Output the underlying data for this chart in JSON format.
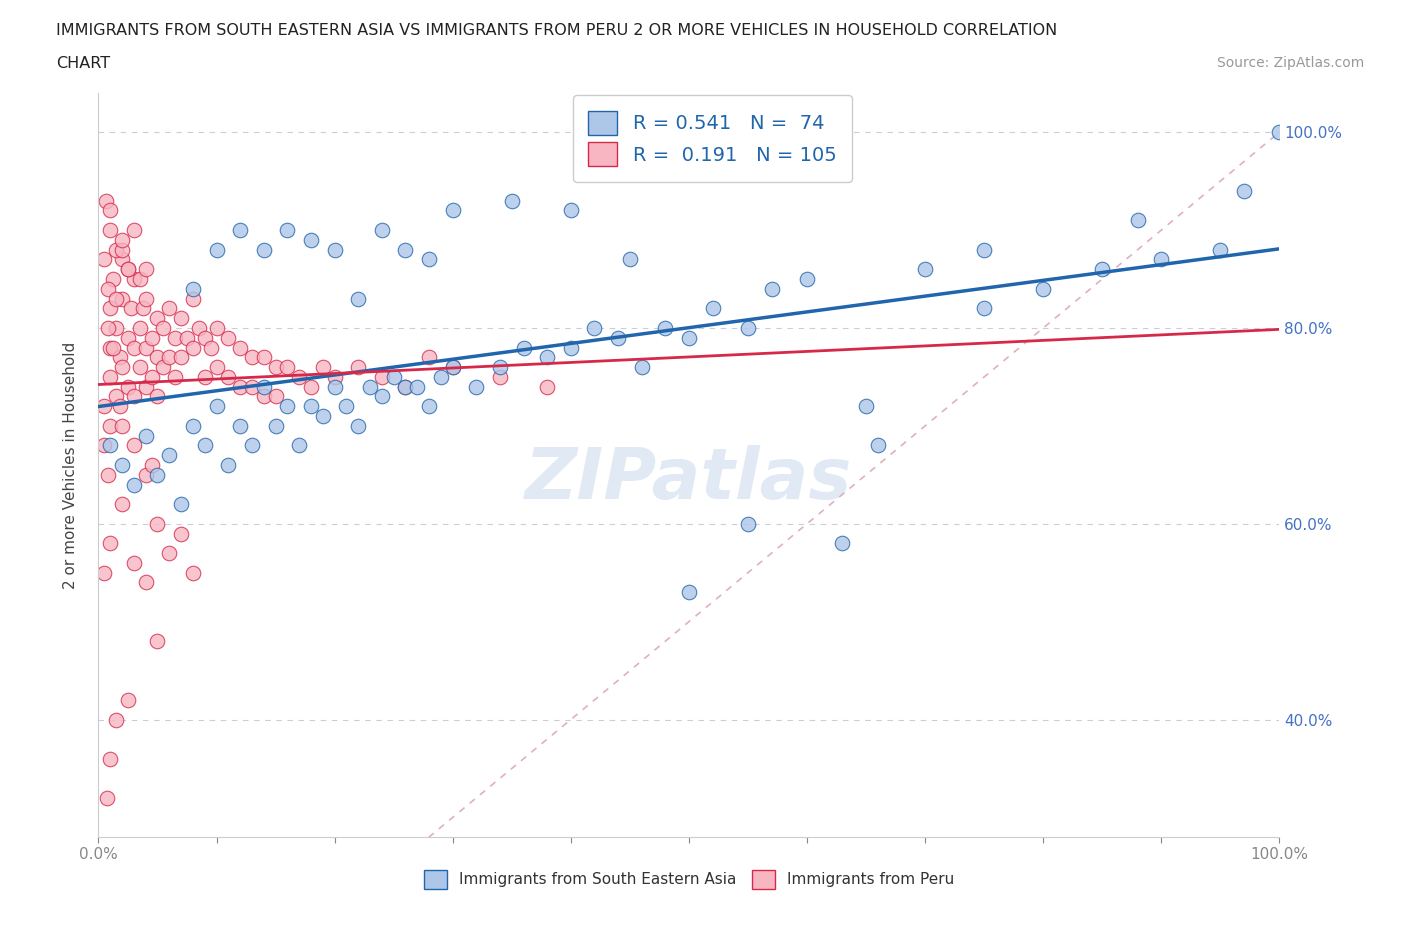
{
  "title_line1": "IMMIGRANTS FROM SOUTH EASTERN ASIA VS IMMIGRANTS FROM PERU 2 OR MORE VEHICLES IN HOUSEHOLD CORRELATION",
  "title_line2": "CHART",
  "source_text": "Source: ZipAtlas.com",
  "ylabel": "2 or more Vehicles in Household",
  "xlim": [
    0.0,
    1.0
  ],
  "ylim": [
    0.28,
    1.04
  ],
  "R_blue": 0.541,
  "N_blue": 74,
  "R_pink": 0.191,
  "N_pink": 105,
  "color_blue": "#aec6e8",
  "color_pink": "#f7b6c2",
  "line_blue": "#2166ac",
  "line_pink": "#d6294a",
  "line_diag_color": "#e0b0c0",
  "watermark": "ZIPatlas",
  "legend_label_blue": "Immigrants from South Eastern Asia",
  "legend_label_pink": "Immigrants from Peru",
  "ytick_color": "#4472c4",
  "xtick_color": "#4472c4",
  "blue_x": [
    0.01,
    0.02,
    0.03,
    0.04,
    0.05,
    0.06,
    0.07,
    0.08,
    0.09,
    0.1,
    0.11,
    0.12,
    0.13,
    0.14,
    0.15,
    0.16,
    0.17,
    0.18,
    0.19,
    0.2,
    0.21,
    0.22,
    0.23,
    0.24,
    0.25,
    0.26,
    0.27,
    0.28,
    0.29,
    0.3,
    0.32,
    0.34,
    0.36,
    0.38,
    0.4,
    0.42,
    0.44,
    0.46,
    0.48,
    0.5,
    0.52,
    0.55,
    0.57,
    0.6,
    0.63,
    0.66,
    0.7,
    0.75,
    0.8,
    0.85,
    0.9,
    0.95,
    1.0,
    0.08,
    0.1,
    0.12,
    0.14,
    0.16,
    0.18,
    0.2,
    0.22,
    0.24,
    0.26,
    0.28,
    0.3,
    0.35,
    0.4,
    0.45,
    0.5,
    0.55,
    0.65,
    0.75,
    0.88,
    0.97
  ],
  "blue_y": [
    0.68,
    0.66,
    0.64,
    0.69,
    0.65,
    0.67,
    0.62,
    0.7,
    0.68,
    0.72,
    0.66,
    0.7,
    0.68,
    0.74,
    0.7,
    0.72,
    0.68,
    0.72,
    0.71,
    0.74,
    0.72,
    0.7,
    0.74,
    0.73,
    0.75,
    0.74,
    0.74,
    0.72,
    0.75,
    0.76,
    0.74,
    0.76,
    0.78,
    0.77,
    0.78,
    0.8,
    0.79,
    0.76,
    0.8,
    0.79,
    0.82,
    0.8,
    0.84,
    0.85,
    0.58,
    0.68,
    0.86,
    0.82,
    0.84,
    0.86,
    0.87,
    0.88,
    1.0,
    0.84,
    0.88,
    0.9,
    0.88,
    0.9,
    0.89,
    0.88,
    0.83,
    0.9,
    0.88,
    0.87,
    0.92,
    0.93,
    0.92,
    0.87,
    0.53,
    0.6,
    0.72,
    0.88,
    0.91,
    0.94
  ],
  "pink_x": [
    0.005,
    0.005,
    0.008,
    0.01,
    0.01,
    0.01,
    0.01,
    0.012,
    0.015,
    0.015,
    0.018,
    0.02,
    0.02,
    0.02,
    0.02,
    0.025,
    0.025,
    0.028,
    0.03,
    0.03,
    0.03,
    0.035,
    0.035,
    0.038,
    0.04,
    0.04,
    0.04,
    0.045,
    0.045,
    0.05,
    0.05,
    0.05,
    0.055,
    0.055,
    0.06,
    0.06,
    0.065,
    0.065,
    0.07,
    0.07,
    0.075,
    0.08,
    0.08,
    0.085,
    0.09,
    0.09,
    0.095,
    0.1,
    0.1,
    0.11,
    0.11,
    0.12,
    0.12,
    0.13,
    0.13,
    0.14,
    0.14,
    0.15,
    0.15,
    0.16,
    0.17,
    0.18,
    0.19,
    0.2,
    0.22,
    0.24,
    0.26,
    0.28,
    0.3,
    0.34,
    0.38,
    0.005,
    0.008,
    0.01,
    0.015,
    0.02,
    0.025,
    0.03,
    0.035,
    0.04,
    0.005,
    0.01,
    0.02,
    0.03,
    0.04,
    0.05,
    0.06,
    0.07,
    0.08,
    0.05,
    0.025,
    0.015,
    0.01,
    0.007,
    0.03,
    0.04,
    0.045,
    0.006,
    0.01,
    0.02,
    0.025,
    0.015,
    0.008,
    0.012,
    0.018
  ],
  "pink_y": [
    0.68,
    0.72,
    0.65,
    0.82,
    0.75,
    0.7,
    0.78,
    0.85,
    0.73,
    0.8,
    0.77,
    0.83,
    0.76,
    0.7,
    0.87,
    0.79,
    0.74,
    0.82,
    0.78,
    0.73,
    0.85,
    0.8,
    0.76,
    0.82,
    0.78,
    0.74,
    0.83,
    0.79,
    0.75,
    0.81,
    0.77,
    0.73,
    0.8,
    0.76,
    0.82,
    0.77,
    0.79,
    0.75,
    0.81,
    0.77,
    0.79,
    0.83,
    0.78,
    0.8,
    0.79,
    0.75,
    0.78,
    0.8,
    0.76,
    0.79,
    0.75,
    0.78,
    0.74,
    0.77,
    0.74,
    0.77,
    0.73,
    0.76,
    0.73,
    0.76,
    0.75,
    0.74,
    0.76,
    0.75,
    0.76,
    0.75,
    0.74,
    0.77,
    0.76,
    0.75,
    0.74,
    0.87,
    0.84,
    0.9,
    0.88,
    0.88,
    0.86,
    0.9,
    0.85,
    0.86,
    0.55,
    0.58,
    0.62,
    0.56,
    0.54,
    0.6,
    0.57,
    0.59,
    0.55,
    0.48,
    0.42,
    0.4,
    0.36,
    0.32,
    0.68,
    0.65,
    0.66,
    0.93,
    0.92,
    0.89,
    0.86,
    0.83,
    0.8,
    0.78,
    0.72
  ]
}
